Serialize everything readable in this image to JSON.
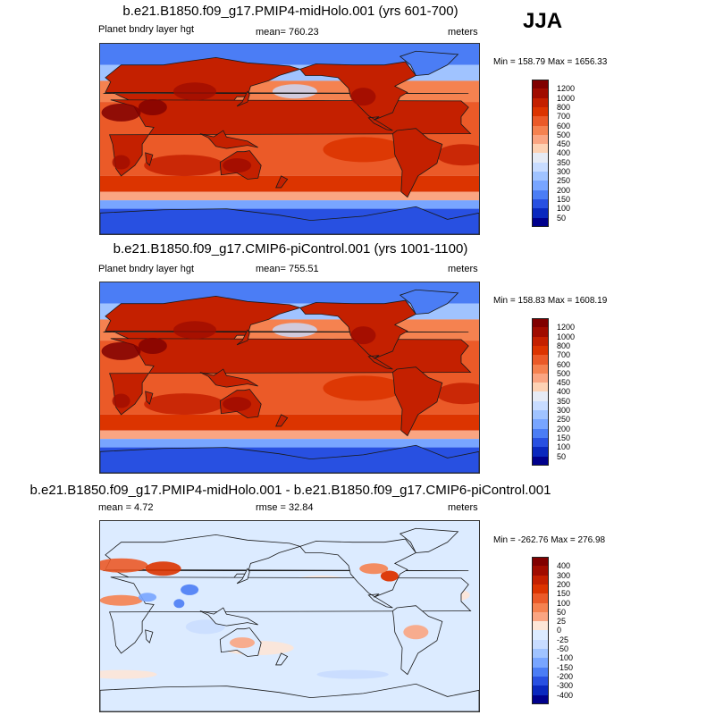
{
  "season": "JJA",
  "panels": [
    {
      "title": "b.e21.B1850.f09_g17.PMIP4-midHolo.001 (yrs 601-700)",
      "left_label": "Planet bndry layer hgt",
      "center_label": "mean= 760.23",
      "right_label": "meters",
      "minmax": "Min = 158.79 Max = 1656.33",
      "type": "field",
      "colorbar": {
        "labels": [
          "1200",
          "1000",
          "800",
          "700",
          "600",
          "500",
          "450",
          "400",
          "350",
          "300",
          "250",
          "200",
          "150",
          "100",
          "50"
        ],
        "colors": [
          "#800000",
          "#a00c00",
          "#c42000",
          "#dc3400",
          "#eb5a28",
          "#f58250",
          "#faa582",
          "#fdd2b4",
          "#e6ebf5",
          "#c8dcff",
          "#a0c3ff",
          "#78a5ff",
          "#4b7df5",
          "#2850e1",
          "#0a28be",
          "#00008c"
        ]
      }
    },
    {
      "title": "b.e21.B1850.f09_g17.CMIP6-piControl.001 (yrs 1001-1100)",
      "left_label": "Planet bndry layer hgt",
      "center_label": "mean= 755.51",
      "right_label": "meters",
      "minmax": "Min = 158.83 Max = 1608.19",
      "type": "field",
      "colorbar": {
        "labels": [
          "1200",
          "1000",
          "800",
          "700",
          "600",
          "500",
          "450",
          "400",
          "350",
          "300",
          "250",
          "200",
          "150",
          "100",
          "50"
        ],
        "colors": [
          "#800000",
          "#a00c00",
          "#c42000",
          "#dc3400",
          "#eb5a28",
          "#f58250",
          "#faa582",
          "#fdd2b4",
          "#e6ebf5",
          "#c8dcff",
          "#a0c3ff",
          "#78a5ff",
          "#4b7df5",
          "#2850e1",
          "#0a28be",
          "#00008c"
        ]
      }
    },
    {
      "title": "b.e21.B1850.f09_g17.PMIP4-midHolo.001 - b.e21.B1850.f09_g17.CMIP6-piControl.001",
      "left_label": "mean =   4.72",
      "center_label": "rmse =  32.84",
      "right_label": "meters",
      "minmax": "Min = -262.76 Max = 276.98",
      "type": "diff",
      "colorbar": {
        "labels": [
          "400",
          "300",
          "200",
          "150",
          "100",
          "50",
          "25",
          "0",
          "-25",
          "-50",
          "-100",
          "-150",
          "-200",
          "-300",
          "-400"
        ],
        "colors": [
          "#800000",
          "#a00c00",
          "#c42000",
          "#dc3400",
          "#eb5a28",
          "#f58250",
          "#faa582",
          "#fde6d7",
          "#dcebff",
          "#c8dcff",
          "#a0c3ff",
          "#78a5ff",
          "#4b7df5",
          "#2850e1",
          "#0a28be",
          "#00008c"
        ]
      }
    }
  ]
}
